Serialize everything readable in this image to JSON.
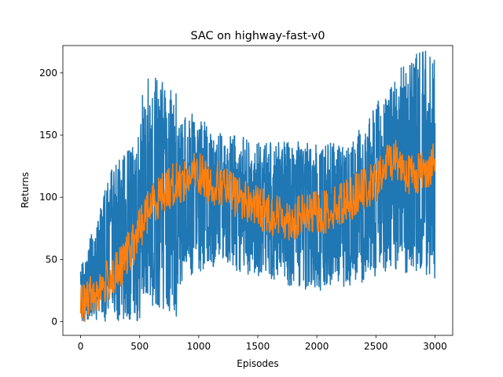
{
  "chart_data": {
    "type": "line",
    "title": "SAC on highway-fast-v0",
    "xlabel": "Episodes",
    "ylabel": "Returns",
    "xlim": [
      -150,
      3150
    ],
    "ylim": [
      -11,
      222
    ],
    "xticks": [
      0,
      500,
      1000,
      1500,
      2000,
      2500,
      3000
    ],
    "yticks": [
      0,
      50,
      100,
      150,
      200
    ],
    "grid": false,
    "legend": "none",
    "series": [
      {
        "color": "#1f77b4",
        "role": "per-episode returns (oscillating between lower and upper envelope)",
        "x": [
          0,
          50,
          100,
          150,
          200,
          250,
          300,
          350,
          400,
          450,
          500,
          530,
          600,
          700,
          800,
          900,
          1000,
          1100,
          1200,
          1300,
          1400,
          1500,
          1600,
          1700,
          1800,
          1900,
          2000,
          2100,
          2200,
          2300,
          2400,
          2500,
          2600,
          2700,
          2800,
          2900,
          3000
        ],
        "lower": [
          0,
          0,
          0,
          0,
          0,
          0,
          0,
          0,
          0,
          0,
          0,
          15,
          10,
          10,
          0,
          35,
          40,
          40,
          42,
          40,
          38,
          36,
          34,
          30,
          28,
          24,
          24,
          22,
          24,
          28,
          30,
          34,
          40,
          40,
          38,
          38,
          30
        ],
        "upper": [
          45,
          55,
          75,
          85,
          105,
          120,
          130,
          140,
          140,
          150,
          160,
          190,
          200,
          195,
          190,
          170,
          165,
          160,
          150,
          150,
          150,
          145,
          145,
          145,
          145,
          145,
          145,
          145,
          145,
          150,
          160,
          175,
          190,
          210,
          215,
          220,
          210
        ]
      },
      {
        "color": "#ff7f0e",
        "role": "smoothed mean returns",
        "x": [
          0,
          50,
          100,
          150,
          200,
          250,
          300,
          350,
          400,
          450,
          500,
          550,
          600,
          650,
          700,
          750,
          800,
          850,
          900,
          950,
          1000,
          1050,
          1100,
          1150,
          1200,
          1250,
          1300,
          1350,
          1400,
          1450,
          1500,
          1550,
          1600,
          1650,
          1700,
          1750,
          1800,
          1850,
          1900,
          1950,
          2000,
          2050,
          2100,
          2150,
          2200,
          2250,
          2300,
          2350,
          2400,
          2450,
          2500,
          2550,
          2600,
          2650,
          2700,
          2750,
          2800,
          2850,
          2900,
          2950,
          3000
        ],
        "values": [
          12,
          18,
          22,
          25,
          30,
          35,
          38,
          45,
          55,
          62,
          75,
          85,
          95,
          100,
          105,
          108,
          110,
          112,
          115,
          118,
          120,
          115,
          110,
          112,
          108,
          105,
          102,
          100,
          97,
          95,
          92,
          90,
          88,
          85,
          85,
          83,
          82,
          84,
          86,
          86,
          88,
          87,
          90,
          92,
          95,
          98,
          100,
          104,
          106,
          108,
          112,
          118,
          128,
          132,
          128,
          122,
          118,
          120,
          122,
          125,
          128
        ]
      }
    ]
  }
}
